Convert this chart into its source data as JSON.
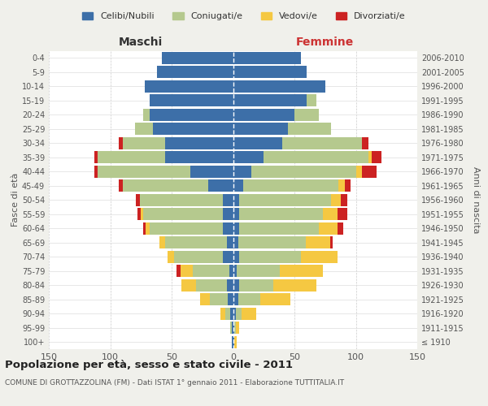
{
  "age_groups": [
    "100+",
    "95-99",
    "90-94",
    "85-89",
    "80-84",
    "75-79",
    "70-74",
    "65-69",
    "60-64",
    "55-59",
    "50-54",
    "45-49",
    "40-44",
    "35-39",
    "30-34",
    "25-29",
    "20-24",
    "15-19",
    "10-14",
    "5-9",
    "0-4"
  ],
  "birth_years": [
    "≤ 1910",
    "1911-1915",
    "1916-1920",
    "1921-1925",
    "1926-1930",
    "1931-1935",
    "1936-1940",
    "1941-1945",
    "1946-1950",
    "1951-1955",
    "1956-1960",
    "1961-1965",
    "1966-1970",
    "1971-1975",
    "1976-1980",
    "1981-1985",
    "1986-1990",
    "1991-1995",
    "1996-2000",
    "2001-2005",
    "2006-2010"
  ],
  "males": {
    "celibi": [
      1,
      1,
      2,
      4,
      5,
      3,
      8,
      5,
      8,
      8,
      8,
      20,
      35,
      55,
      55,
      65,
      68,
      68,
      72,
      62,
      58
    ],
    "coniugati": [
      0,
      1,
      4,
      15,
      25,
      30,
      40,
      50,
      60,
      65,
      68,
      70,
      75,
      55,
      35,
      15,
      5,
      0,
      0,
      0,
      0
    ],
    "vedovi": [
      0,
      0,
      4,
      8,
      12,
      10,
      5,
      5,
      3,
      2,
      0,
      0,
      0,
      0,
      0,
      0,
      0,
      0,
      0,
      0,
      0
    ],
    "divorziati": [
      0,
      0,
      0,
      0,
      0,
      3,
      0,
      0,
      2,
      3,
      3,
      3,
      3,
      3,
      3,
      0,
      0,
      0,
      0,
      0,
      0
    ]
  },
  "females": {
    "celibi": [
      1,
      1,
      2,
      4,
      5,
      3,
      5,
      4,
      5,
      5,
      5,
      8,
      15,
      25,
      40,
      45,
      50,
      60,
      75,
      60,
      55
    ],
    "coniugati": [
      0,
      1,
      5,
      18,
      28,
      35,
      50,
      55,
      65,
      68,
      75,
      78,
      85,
      85,
      65,
      35,
      20,
      8,
      0,
      0,
      0
    ],
    "vedovi": [
      2,
      3,
      12,
      25,
      35,
      35,
      30,
      20,
      15,
      12,
      8,
      5,
      5,
      3,
      0,
      0,
      0,
      0,
      0,
      0,
      0
    ],
    "divorziati": [
      0,
      0,
      0,
      0,
      0,
      0,
      0,
      2,
      5,
      8,
      5,
      5,
      12,
      8,
      5,
      0,
      0,
      0,
      0,
      0,
      0
    ]
  },
  "colors": {
    "celibi": "#3d6fa8",
    "coniugati": "#b5c98e",
    "vedovi": "#f5c842",
    "divorziati": "#cc2222"
  },
  "legend_labels": [
    "Celibi/Nubili",
    "Coniugati/e",
    "Vedovi/e",
    "Divorziati/e"
  ],
  "title": "Popolazione per età, sesso e stato civile - 2011",
  "subtitle": "COMUNE DI GROTTAZZOLINA (FM) - Dati ISTAT 1° gennaio 2011 - Elaborazione TUTTITALIA.IT",
  "ylabel_left": "Fasce di età",
  "ylabel_right": "Anni di nascita",
  "xlabel_left": "Maschi",
  "xlabel_right": "Femmine",
  "xlim": 150,
  "bg_color": "#f0f0eb",
  "plot_bg": "#ffffff"
}
